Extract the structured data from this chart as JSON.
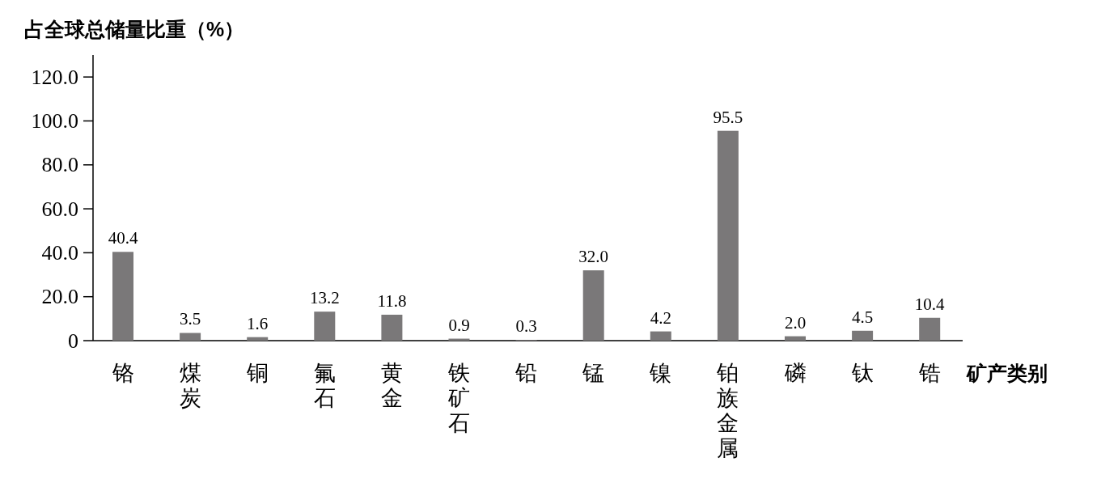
{
  "chart_data": {
    "type": "bar",
    "ylabel": "占全球总储量比重（%）",
    "xlabel": "矿产类别",
    "categories": [
      "铬",
      "煤炭",
      "铜",
      "氟石",
      "黄金",
      "铁矿石",
      "铅",
      "锰",
      "镍",
      "铂族金属",
      "磷",
      "钛",
      "锆"
    ],
    "values": [
      40.4,
      3.5,
      1.6,
      13.2,
      11.8,
      0.9,
      0.3,
      32.0,
      4.2,
      95.5,
      2.0,
      4.5,
      10.4
    ],
    "value_labels": [
      "40.4",
      "3.5",
      "1.6",
      "13.2",
      "11.8",
      "0.9",
      "0.3",
      "32.0",
      "4.2",
      "95.5",
      "2.0",
      "4.5",
      "10.4"
    ],
    "color": "#7a7879",
    "ylim": [
      0,
      130
    ],
    "yticks": [
      0,
      {
        "value": 20,
        "label": "20.0"
      },
      {
        "value": 40,
        "label": "40.0"
      },
      {
        "value": 60,
        "label": "60.0"
      },
      {
        "value": 80,
        "label": "80.0"
      },
      {
        "value": 100,
        "label": "100.0"
      },
      {
        "value": 120,
        "label": "120.0"
      }
    ],
    "grid": false
  }
}
